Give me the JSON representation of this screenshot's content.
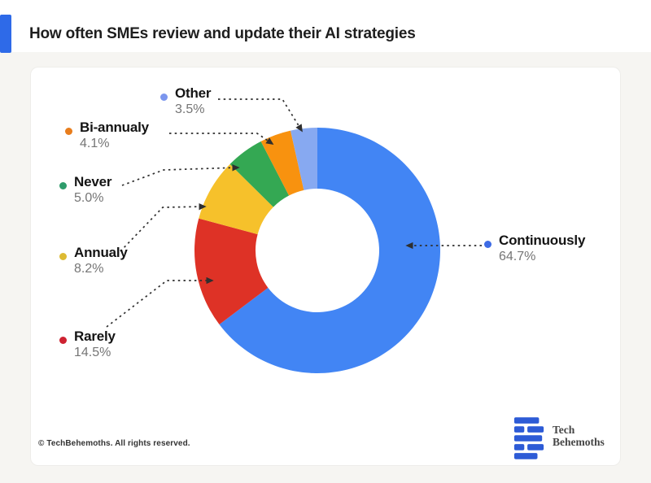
{
  "header": {
    "title": "How often SMEs review and update their AI strategies",
    "accent_color": "#2E6AE8"
  },
  "chart_data": {
    "type": "pie",
    "subtype": "donut",
    "title": "How often SMEs review and update their AI strategies",
    "direction": "clockwise",
    "start_angle_deg": 0,
    "inner_radius_ratio": 0.5,
    "total": 100,
    "segments": [
      {
        "label": "Continuously",
        "value": 64.7,
        "pct": "64.7%",
        "color": "#4285F4",
        "dot_color": "#3D6BE5"
      },
      {
        "label": "Rarely",
        "value": 14.5,
        "pct": "14.5%",
        "color": "#DE3226",
        "dot_color": "#CE2231"
      },
      {
        "label": "Annualy",
        "value": 8.2,
        "pct": "8.2%",
        "color": "#F6C12B",
        "dot_color": "#DDBA33"
      },
      {
        "label": "Never",
        "value": 5.0,
        "pct": "5.0%",
        "color": "#34A853",
        "dot_color": "#2E9C6B"
      },
      {
        "label": "Bi-annualy",
        "value": 4.1,
        "pct": "4.1%",
        "color": "#F8920F",
        "dot_color": "#E87D1C"
      },
      {
        "label": "Other",
        "value": 3.5,
        "pct": "3.5%",
        "color": "#87A9F1",
        "dot_color": "#7B96EE"
      }
    ]
  },
  "footer": {
    "copyright": "© TechBehemoths. All rights reserved.",
    "logo": {
      "line1": "Tech",
      "line2": "Behemoths",
      "color": "#2D5BD6"
    }
  }
}
